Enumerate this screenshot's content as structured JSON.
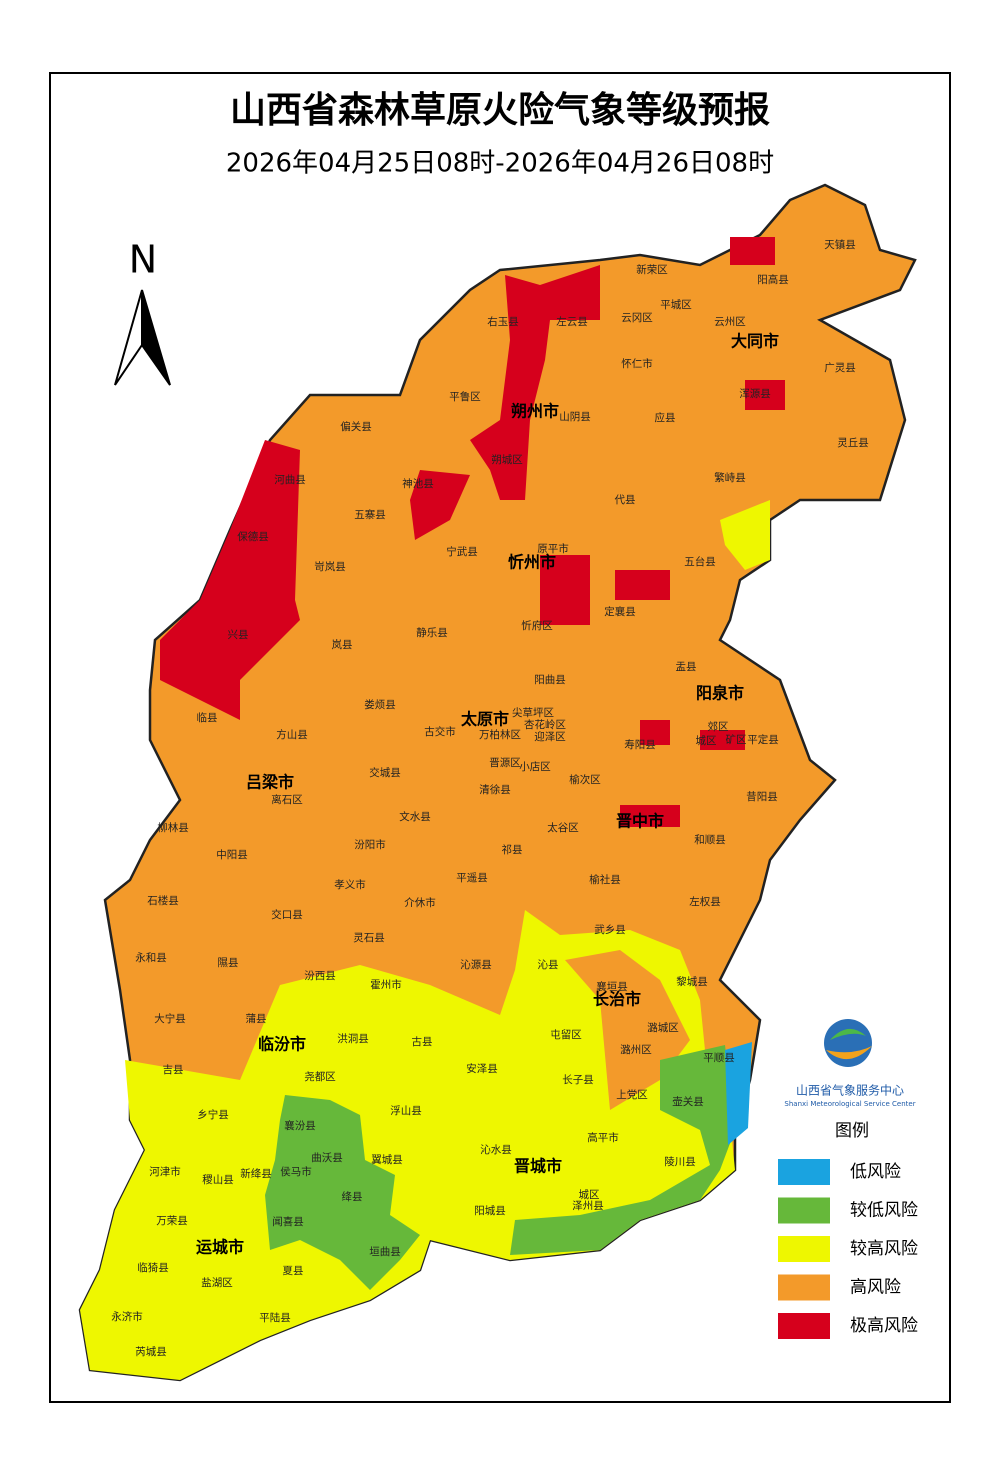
{
  "header": {
    "title": "山西省森林草原火险气象等级预报",
    "subtitle": "2026年04月25日08时-2026年04月26日08时"
  },
  "north_arrow": {
    "label": "N"
  },
  "map": {
    "cities": [
      "大同市",
      "朔州市",
      "忻州市",
      "阳泉市",
      "太原市",
      "吕梁市",
      "晋中市",
      "长治市",
      "临汾市",
      "晋城市",
      "运城市"
    ],
    "counties": [
      "天镇县",
      "新荣区",
      "阳高县",
      "平城区",
      "右玉县",
      "左云县",
      "云冈区",
      "云州区",
      "怀仁市",
      "广灵县",
      "浑源县",
      "平鲁区",
      "山阴县",
      "应县",
      "偏关县",
      "灵丘县",
      "朔城区",
      "河曲县",
      "神池县",
      "繁峙县",
      "代县",
      "五寨县",
      "保德县",
      "宁武县",
      "原平市",
      "五台县",
      "岢岚县",
      "定襄县",
      "忻府区",
      "兴县",
      "岚县",
      "静乐县",
      "盂县",
      "阳曲县",
      "临县",
      "娄烦县",
      "尖草坪区",
      "古交市",
      "万柏林区",
      "杏花岭区",
      "迎泽区",
      "郊区",
      "矿区",
      "城区",
      "方山县",
      "寿阳县",
      "平定县",
      "晋源区",
      "小店区",
      "交城县",
      "榆次区",
      "清徐县",
      "离石区",
      "昔阳县",
      "文水县",
      "柳林县",
      "太谷区",
      "和顺县",
      "祁县",
      "汾阳市",
      "中阳县",
      "孝义市",
      "平遥县",
      "榆社县",
      "介休市",
      "石楼县",
      "左权县",
      "交口县",
      "灵石县",
      "武乡县",
      "永和县",
      "隰县",
      "沁源县",
      "沁县",
      "黎城县",
      "襄垣县",
      "汾西县",
      "霍州市",
      "大宁县",
      "蒲县",
      "潞城区",
      "洪洞县",
      "屯留区",
      "古县",
      "潞州区",
      "平顺县",
      "吉县",
      "安泽县",
      "尧都区",
      "长子县",
      "上党区",
      "壶关县",
      "乡宁县",
      "浮山县",
      "襄汾县",
      "高平市",
      "沁水县",
      "曲沃县",
      "翼城县",
      "陵川县",
      "河津市",
      "稷山县",
      "新绛县",
      "侯马市",
      "绛县",
      "城区",
      "泽州县",
      "阳城县",
      "万荣县",
      "闻喜县",
      "垣曲县",
      "临猗县",
      "盐湖区",
      "夏县",
      "永济市",
      "平陆县",
      "芮城县"
    ]
  },
  "legend": {
    "title": "图例",
    "items": [
      {
        "label": "低风险",
        "color": "#1aa3e0"
      },
      {
        "label": "较低风险",
        "color": "#66b83a"
      },
      {
        "label": "较高风险",
        "color": "#eef700"
      },
      {
        "label": "高风险",
        "color": "#f39a2a"
      },
      {
        "label": "极高风险",
        "color": "#d6001c"
      }
    ]
  },
  "logo": {
    "name_cn": "山西省气象服务中心",
    "name_en": "Shanxi Meteorological Service Center"
  }
}
